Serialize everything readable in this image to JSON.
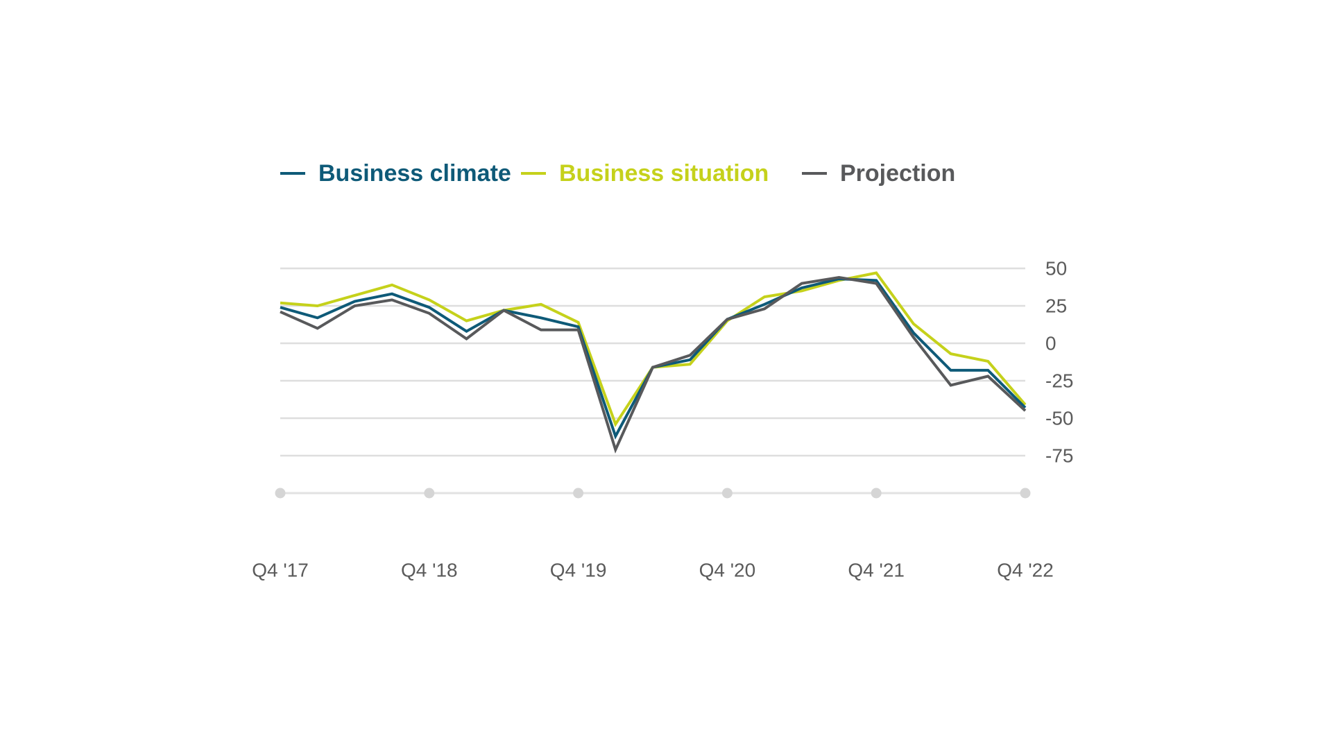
{
  "chart_data": {
    "type": "line",
    "title": "",
    "xlabel": "",
    "ylabel": "",
    "ylim": [
      -100,
      50
    ],
    "y_ticks": [
      50,
      25,
      0,
      -25,
      -50,
      -75
    ],
    "y_tick_labels": [
      "50",
      "25",
      "0",
      "-25",
      "-50",
      "-75"
    ],
    "y_axis_side": "right",
    "x_tick_labels": [
      "Q4 '17",
      "Q4 '18",
      "Q4 '19",
      "Q4 '20",
      "Q4 '21",
      "Q4 '22"
    ],
    "x_tick_positions": [
      0,
      4,
      8,
      12,
      16,
      20
    ],
    "x_count": 21,
    "grid": true,
    "legend_position": "top",
    "series": [
      {
        "name": "Business climate",
        "color": "#0e5a78",
        "values": [
          24,
          17,
          28,
          33,
          24,
          8,
          22,
          17,
          11,
          -62,
          -16,
          -11,
          16,
          26,
          37,
          43,
          42,
          7,
          -18,
          -18,
          -43
        ]
      },
      {
        "name": "Business situation",
        "color": "#c5d11b",
        "values": [
          27,
          25,
          32,
          39,
          29,
          15,
          22,
          26,
          14,
          -54,
          -16,
          -14,
          15,
          31,
          35,
          42,
          47,
          13,
          -7,
          -12,
          -41
        ]
      },
      {
        "name": "Projection",
        "color": "#58595b",
        "values": [
          21,
          10,
          25,
          29,
          20,
          3,
          22,
          9,
          9,
          -71,
          -16,
          -8,
          16,
          23,
          40,
          44,
          40,
          4,
          -28,
          -22,
          -45
        ]
      }
    ]
  },
  "colors": {
    "grid": "#dedede",
    "axis": "#e2e2e2",
    "tick_dot": "#d5d5d5",
    "tick_text": "#5b5b5b"
  }
}
